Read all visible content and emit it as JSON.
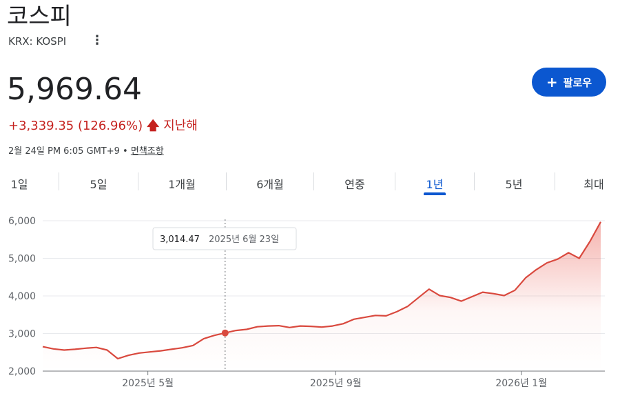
{
  "header": {
    "title": "코스피",
    "ticker": "KRX: KOSPI",
    "price": "5,969.64",
    "change": "+3,339.35 (126.96%)",
    "period": "지난해",
    "timestamp": "2월 24일 PM 6:05 GMT+9 •",
    "disclaimer": "면책조항"
  },
  "follow_button": "팔로우",
  "tabs": [
    "1일",
    "5일",
    "1개월",
    "6개월",
    "연중",
    "1년",
    "5년",
    "최대"
  ],
  "selected_tab": 5,
  "chart_data": {
    "type": "area",
    "values": [
      2650,
      2590,
      2560,
      2580,
      2610,
      2630,
      2560,
      2330,
      2420,
      2480,
      2510,
      2540,
      2580,
      2620,
      2680,
      2860,
      2950,
      3014.47,
      3080,
      3110,
      3180,
      3200,
      3210,
      3160,
      3200,
      3190,
      3170,
      3200,
      3260,
      3380,
      3430,
      3480,
      3470,
      3580,
      3720,
      3950,
      4180,
      4010,
      3960,
      3860,
      3980,
      4100,
      4060,
      4010,
      4150,
      4480,
      4700,
      4880,
      4980,
      5150,
      5000,
      5450,
      5969.64
    ],
    "color": "#d9493e",
    "xlim": [
      0,
      52
    ],
    "xticks": [
      {
        "value": 9.8,
        "label": "2025년 5월"
      },
      {
        "value": 27.3,
        "label": "2025년 9월"
      },
      {
        "value": 44.6,
        "label": "2026년 1월"
      }
    ],
    "ylim": [
      2000,
      6000
    ],
    "yticks": [
      {
        "value": 2000,
        "label": "2,000"
      },
      {
        "value": 3000,
        "label": "3,000"
      },
      {
        "value": 4000,
        "label": "4,000"
      },
      {
        "value": 5000,
        "label": "5,000"
      },
      {
        "value": 6000,
        "label": "6,000"
      }
    ],
    "grid": true,
    "highlight": {
      "x": 17,
      "value": 3014.47,
      "label": "3,014.47",
      "date": "2025년 6월 23일"
    }
  }
}
